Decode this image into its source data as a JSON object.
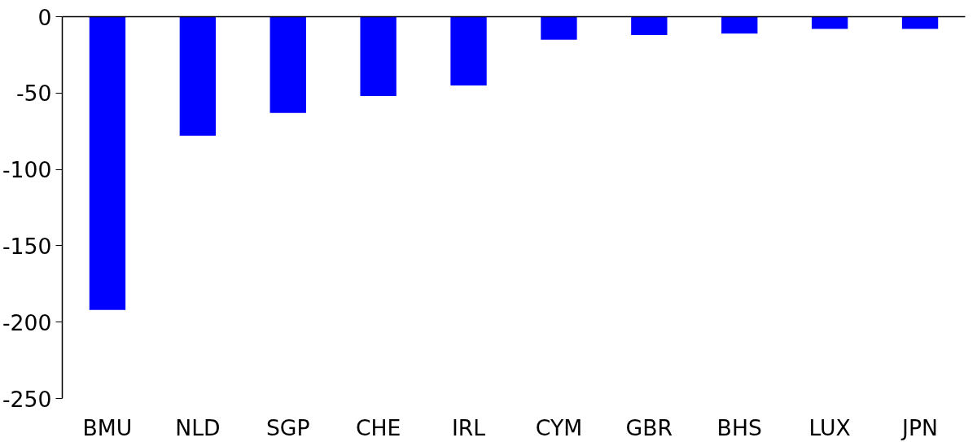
{
  "chart_data": {
    "type": "bar",
    "categories": [
      "BMU",
      "NLD",
      "SGP",
      "CHE",
      "IRL",
      "CYM",
      "GBR",
      "BHS",
      "LUX",
      "JPN"
    ],
    "values": [
      -192,
      -78,
      -63,
      -52,
      -45,
      -15,
      -12,
      -11,
      -8,
      -8
    ],
    "color": "#0000ff",
    "ylim": [
      -250,
      0
    ],
    "yticks": [
      -250,
      -200,
      -150,
      -100,
      -50,
      0
    ],
    "grid": false
  }
}
